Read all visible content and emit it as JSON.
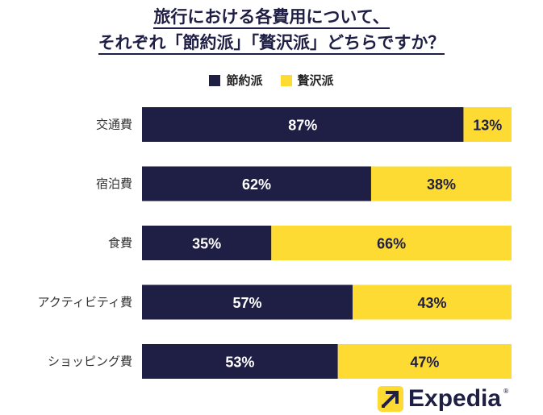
{
  "chart_data": {
    "type": "bar",
    "orientation": "horizontal",
    "stacked": true,
    "title_line1": "旅行における各費用について、",
    "title_line2": "それぞれ「節約派」「贅沢派」どちらですか？",
    "categories": [
      "交通費",
      "宿泊費",
      "食費",
      "アクティビティ費",
      "ショッピング費"
    ],
    "series": [
      {
        "name": "節約派",
        "values": [
          87,
          62,
          35,
          57,
          53
        ],
        "labels": [
          "87%",
          "62%",
          "35%",
          "57%",
          "53%"
        ],
        "color": "#1f1f45"
      },
      {
        "name": "贅沢派",
        "values": [
          13,
          38,
          66,
          43,
          47
        ],
        "labels": [
          "13%",
          "38%",
          "66%",
          "43%",
          "47%"
        ],
        "color": "#fddb32"
      }
    ],
    "xlim": [
      0,
      100
    ],
    "grid": false,
    "legend_position": "top-center"
  },
  "logo": {
    "text": "Expedia",
    "reg": "®"
  }
}
